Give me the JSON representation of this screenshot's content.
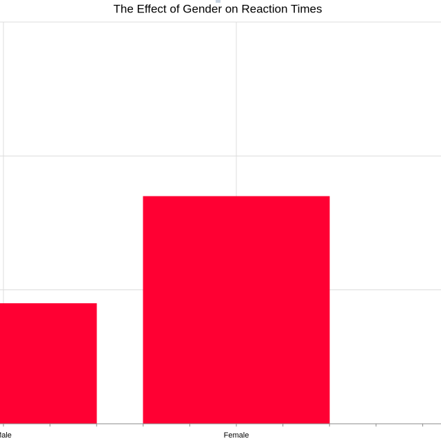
{
  "chart_data": {
    "type": "bar",
    "title": "The Effect of Gender on Reaction Times",
    "categories": [
      "Male",
      "Female"
    ],
    "values": [
      0.9,
      1.7
    ],
    "color": "#ff0033",
    "ylim": [
      0,
      3
    ],
    "yticks": [
      0,
      1,
      2,
      3
    ],
    "grid": true
  }
}
